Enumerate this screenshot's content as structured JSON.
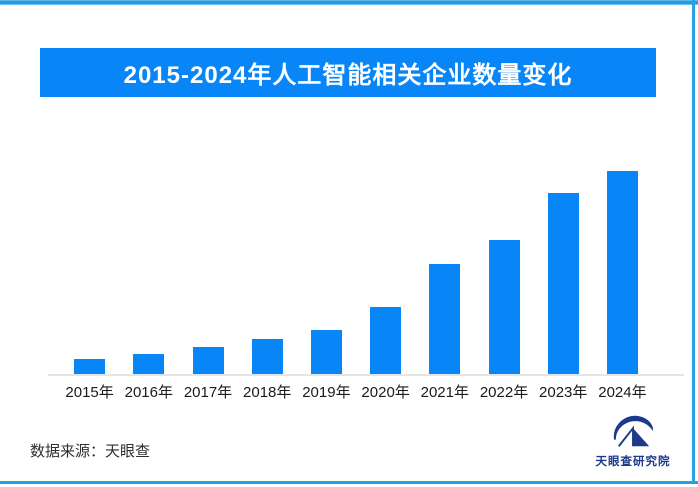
{
  "frame": {
    "border_color": "#2aa0e4",
    "background": "#ffffff"
  },
  "header": {
    "title": "2015-2024年人工智能相关企业数量变化",
    "banner_color": "#0886f8",
    "title_text_color": "#ffffff"
  },
  "chart_data": {
    "type": "bar",
    "title": "2015-2024年人工智能相关企业数量变化",
    "categories": [
      "2015年",
      "2016年",
      "2017年",
      "2018年",
      "2019年",
      "2020年",
      "2021年",
      "2022年",
      "2023年",
      "2024年"
    ],
    "values": [
      8.1,
      10.5,
      13.7,
      17.9,
      22.3,
      33.6,
      54.4,
      66.4,
      89.2,
      100
    ],
    "xlabel": "",
    "ylabel": "",
    "ylim": [
      0,
      100
    ],
    "grid": false,
    "legend": false,
    "bar_color": "#0886f8",
    "axis_line_color": "#e4e4e4",
    "note": "no numeric axis or data labels shown; values are bar heights estimated as percent of tallest bar"
  },
  "footer": {
    "source_text": "数据来源：天眼查",
    "logo_label": "天眼查研究院",
    "logo_color": "#1c3a8c"
  }
}
